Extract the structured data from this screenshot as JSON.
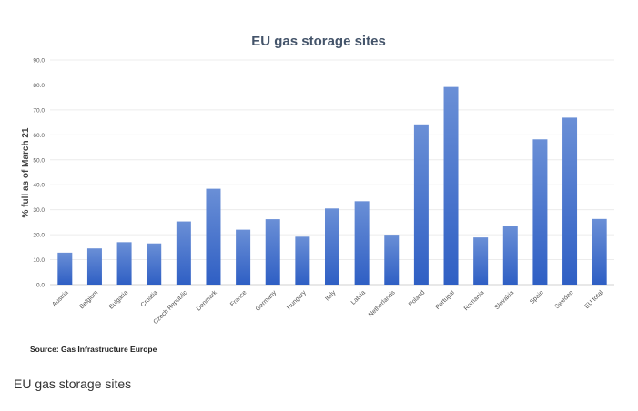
{
  "chart_data": {
    "type": "bar",
    "title": "EU gas storage sites",
    "xlabel": "",
    "ylabel": "% full as of March 21",
    "ylim": [
      0,
      90
    ],
    "yticks": [
      "0.0",
      "10.0",
      "20.0",
      "30.0",
      "40.0",
      "50.0",
      "60.0",
      "70.0",
      "80.0",
      "90.0"
    ],
    "grid": true,
    "categories": [
      "Austria",
      "Belgium",
      "Bulgaria",
      "Croatia",
      "Czech Republic",
      "Denmark",
      "France",
      "Germany",
      "Hungary",
      "Italy",
      "Latvia",
      "Netherlands",
      "Poland",
      "Portugal",
      "Romania",
      "Slovakia",
      "Spain",
      "Sweden",
      "EU total"
    ],
    "values": [
      12.8,
      14.5,
      17.0,
      16.5,
      25.3,
      38.4,
      22.0,
      26.2,
      19.2,
      30.5,
      33.4,
      20.0,
      64.2,
      79.2,
      18.9,
      23.6,
      58.2,
      66.9,
      26.3
    ],
    "source": "Source: Gas Infrastructure Europe",
    "bar_color_top": "#6a8fd6",
    "bar_color_bottom": "#2f5fc4"
  },
  "caption": "EU gas storage sites"
}
